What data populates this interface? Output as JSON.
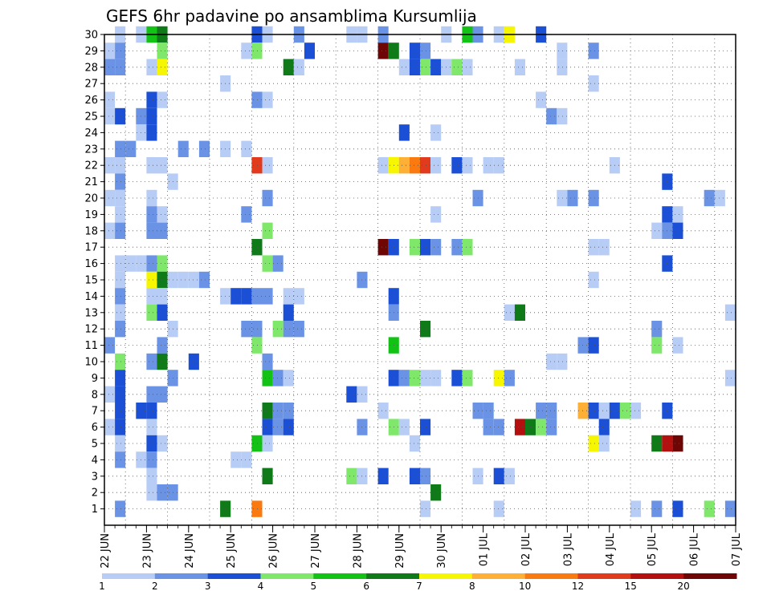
{
  "chart_data": {
    "type": "heatmap",
    "title": "GEFS 6hr padavine po ansamblima Kursumlija",
    "x_ticks": [
      "22 JUN",
      "23 JUN",
      "24 JUN",
      "25 JUN",
      "26 JUN",
      "27 JUN",
      "28 JUN",
      "29 JUN",
      "30 JUN",
      "01 JUL",
      "02 JUL",
      "03 JUL",
      "04 JUL",
      "05 JUL",
      "06 JUL",
      "07 JUL"
    ],
    "y_ticks": [
      1,
      2,
      3,
      4,
      5,
      6,
      7,
      8,
      9,
      10,
      11,
      12,
      13,
      14,
      15,
      16,
      17,
      18,
      19,
      20,
      21,
      22,
      23,
      24,
      25,
      26,
      27,
      28,
      29,
      30
    ],
    "ylim": [
      0,
      30
    ],
    "x_steps_per_day": 4,
    "grid": true,
    "colorbar": {
      "levels": [
        "1",
        "2",
        "3",
        "4",
        "5",
        "6",
        "7",
        "8",
        "10",
        "12",
        "15",
        "20"
      ],
      "colors": [
        "#b8cdf5",
        "#6a93e6",
        "#1a4fd6",
        "#7fe86a",
        "#12c214",
        "#0e7a18",
        "#f6f600",
        "#fdb035",
        "#fb7a10",
        "#e23a1c",
        "#b41010",
        "#6e0606"
      ]
    },
    "cells": [
      [
        1,
        30,
        0
      ],
      [
        3,
        30,
        0
      ],
      [
        4,
        30,
        4
      ],
      [
        5,
        30,
        5
      ],
      [
        14,
        30,
        2
      ],
      [
        15,
        30,
        0
      ],
      [
        18,
        30,
        1
      ],
      [
        23,
        30,
        0
      ],
      [
        24,
        30,
        0
      ],
      [
        26,
        30,
        1
      ],
      [
        32,
        30,
        0
      ],
      [
        34,
        30,
        4
      ],
      [
        35,
        30,
        1
      ],
      [
        37,
        30,
        0
      ],
      [
        38,
        30,
        6
      ],
      [
        41,
        30,
        2
      ],
      [
        0,
        29,
        0
      ],
      [
        1,
        29,
        1
      ],
      [
        5,
        29,
        3
      ],
      [
        13,
        29,
        0
      ],
      [
        14,
        29,
        3
      ],
      [
        19,
        29,
        2
      ],
      [
        26,
        29,
        11
      ],
      [
        27,
        29,
        5
      ],
      [
        29,
        29,
        2
      ],
      [
        30,
        29,
        1
      ],
      [
        43,
        29,
        0
      ],
      [
        46,
        29,
        1
      ],
      [
        0,
        28,
        1
      ],
      [
        1,
        28,
        1
      ],
      [
        4,
        28,
        0
      ],
      [
        5,
        28,
        6
      ],
      [
        17,
        28,
        5
      ],
      [
        18,
        28,
        0
      ],
      [
        28,
        28,
        0
      ],
      [
        29,
        28,
        2
      ],
      [
        30,
        28,
        3
      ],
      [
        31,
        28,
        2
      ],
      [
        32,
        28,
        0
      ],
      [
        33,
        28,
        3
      ],
      [
        34,
        28,
        0
      ],
      [
        39,
        28,
        0
      ],
      [
        43,
        28,
        0
      ],
      [
        11,
        27,
        0
      ],
      [
        46,
        27,
        0
      ],
      [
        0,
        26,
        0
      ],
      [
        4,
        26,
        2
      ],
      [
        5,
        26,
        0
      ],
      [
        14,
        26,
        1
      ],
      [
        15,
        26,
        0
      ],
      [
        41,
        26,
        0
      ],
      [
        0,
        25,
        0
      ],
      [
        1,
        25,
        2
      ],
      [
        3,
        25,
        1
      ],
      [
        4,
        25,
        2
      ],
      [
        42,
        25,
        1
      ],
      [
        43,
        25,
        0
      ],
      [
        3,
        24,
        0
      ],
      [
        4,
        24,
        2
      ],
      [
        28,
        24,
        2
      ],
      [
        31,
        24,
        0
      ],
      [
        1,
        23,
        1
      ],
      [
        2,
        23,
        1
      ],
      [
        7,
        23,
        1
      ],
      [
        9,
        23,
        1
      ],
      [
        11,
        23,
        0
      ],
      [
        13,
        23,
        0
      ],
      [
        0,
        22,
        0
      ],
      [
        1,
        22,
        0
      ],
      [
        4,
        22,
        0
      ],
      [
        5,
        22,
        0
      ],
      [
        14,
        22,
        9
      ],
      [
        15,
        22,
        0
      ],
      [
        26,
        22,
        0
      ],
      [
        27,
        22,
        6
      ],
      [
        28,
        22,
        7
      ],
      [
        29,
        22,
        8
      ],
      [
        30,
        22,
        9
      ],
      [
        31,
        22,
        0
      ],
      [
        33,
        22,
        2
      ],
      [
        34,
        22,
        0
      ],
      [
        36,
        22,
        0
      ],
      [
        37,
        22,
        0
      ],
      [
        48,
        22,
        0
      ],
      [
        1,
        21,
        1
      ],
      [
        6,
        21,
        0
      ],
      [
        53,
        21,
        2
      ],
      [
        0,
        20,
        0
      ],
      [
        1,
        20,
        0
      ],
      [
        4,
        20,
        0
      ],
      [
        15,
        20,
        1
      ],
      [
        35,
        20,
        1
      ],
      [
        43,
        20,
        0
      ],
      [
        44,
        20,
        1
      ],
      [
        46,
        20,
        1
      ],
      [
        57,
        20,
        1
      ],
      [
        58,
        20,
        0
      ],
      [
        1,
        19,
        0
      ],
      [
        4,
        19,
        1
      ],
      [
        5,
        19,
        0
      ],
      [
        13,
        19,
        1
      ],
      [
        31,
        19,
        0
      ],
      [
        53,
        19,
        2
      ],
      [
        54,
        19,
        0
      ],
      [
        0,
        18,
        0
      ],
      [
        1,
        18,
        1
      ],
      [
        4,
        18,
        1
      ],
      [
        5,
        18,
        1
      ],
      [
        15,
        18,
        3
      ],
      [
        52,
        18,
        0
      ],
      [
        53,
        18,
        1
      ],
      [
        54,
        18,
        2
      ],
      [
        14,
        17,
        5
      ],
      [
        26,
        17,
        11
      ],
      [
        27,
        17,
        2
      ],
      [
        29,
        17,
        3
      ],
      [
        30,
        17,
        2
      ],
      [
        31,
        17,
        1
      ],
      [
        33,
        17,
        1
      ],
      [
        34,
        17,
        3
      ],
      [
        46,
        17,
        0
      ],
      [
        47,
        17,
        0
      ],
      [
        1,
        16,
        0
      ],
      [
        2,
        16,
        0
      ],
      [
        3,
        16,
        0
      ],
      [
        4,
        16,
        1
      ],
      [
        5,
        16,
        3
      ],
      [
        15,
        16,
        3
      ],
      [
        16,
        16,
        1
      ],
      [
        53,
        16,
        2
      ],
      [
        1,
        15,
        0
      ],
      [
        4,
        15,
        6
      ],
      [
        5,
        15,
        5
      ],
      [
        6,
        15,
        0
      ],
      [
        7,
        15,
        0
      ],
      [
        8,
        15,
        0
      ],
      [
        9,
        15,
        1
      ],
      [
        24,
        15,
        1
      ],
      [
        46,
        15,
        0
      ],
      [
        1,
        14,
        1
      ],
      [
        4,
        14,
        0
      ],
      [
        5,
        14,
        0
      ],
      [
        11,
        14,
        0
      ],
      [
        12,
        14,
        2
      ],
      [
        13,
        14,
        2
      ],
      [
        14,
        14,
        1
      ],
      [
        15,
        14,
        1
      ],
      [
        17,
        14,
        0
      ],
      [
        18,
        14,
        0
      ],
      [
        27,
        14,
        2
      ],
      [
        1,
        13,
        0
      ],
      [
        4,
        13,
        3
      ],
      [
        5,
        13,
        2
      ],
      [
        17,
        13,
        2
      ],
      [
        27,
        13,
        1
      ],
      [
        38,
        13,
        0
      ],
      [
        39,
        13,
        5
      ],
      [
        59,
        13,
        0
      ],
      [
        1,
        12,
        1
      ],
      [
        6,
        12,
        0
      ],
      [
        13,
        12,
        1
      ],
      [
        14,
        12,
        1
      ],
      [
        16,
        12,
        3
      ],
      [
        17,
        12,
        1
      ],
      [
        18,
        12,
        1
      ],
      [
        30,
        12,
        5
      ],
      [
        52,
        12,
        1
      ],
      [
        0,
        11,
        1
      ],
      [
        5,
        11,
        1
      ],
      [
        14,
        11,
        3
      ],
      [
        27,
        11,
        4
      ],
      [
        45,
        11,
        1
      ],
      [
        46,
        11,
        2
      ],
      [
        52,
        11,
        3
      ],
      [
        54,
        11,
        0
      ],
      [
        1,
        10,
        3
      ],
      [
        4,
        10,
        1
      ],
      [
        5,
        10,
        5
      ],
      [
        8,
        10,
        2
      ],
      [
        15,
        10,
        1
      ],
      [
        42,
        10,
        0
      ],
      [
        43,
        10,
        0
      ],
      [
        1,
        9,
        2
      ],
      [
        6,
        9,
        1
      ],
      [
        15,
        9,
        4
      ],
      [
        16,
        9,
        1
      ],
      [
        17,
        9,
        0
      ],
      [
        27,
        9,
        2
      ],
      [
        28,
        9,
        1
      ],
      [
        29,
        9,
        3
      ],
      [
        30,
        9,
        0
      ],
      [
        31,
        9,
        0
      ],
      [
        33,
        9,
        2
      ],
      [
        34,
        9,
        3
      ],
      [
        37,
        9,
        6
      ],
      [
        38,
        9,
        1
      ],
      [
        59,
        9,
        0
      ],
      [
        0,
        8,
        0
      ],
      [
        1,
        8,
        2
      ],
      [
        4,
        8,
        1
      ],
      [
        5,
        8,
        1
      ],
      [
        23,
        8,
        2
      ],
      [
        24,
        8,
        0
      ],
      [
        1,
        7,
        2
      ],
      [
        3,
        7,
        2
      ],
      [
        4,
        7,
        2
      ],
      [
        15,
        7,
        5
      ],
      [
        16,
        7,
        1
      ],
      [
        17,
        7,
        1
      ],
      [
        26,
        7,
        0
      ],
      [
        35,
        7,
        1
      ],
      [
        36,
        7,
        1
      ],
      [
        41,
        7,
        1
      ],
      [
        42,
        7,
        1
      ],
      [
        45,
        7,
        7
      ],
      [
        46,
        7,
        2
      ],
      [
        47,
        7,
        0
      ],
      [
        48,
        7,
        2
      ],
      [
        49,
        7,
        3
      ],
      [
        50,
        7,
        0
      ],
      [
        53,
        7,
        2
      ],
      [
        0,
        6,
        0
      ],
      [
        1,
        6,
        2
      ],
      [
        4,
        6,
        0
      ],
      [
        15,
        6,
        2
      ],
      [
        16,
        6,
        1
      ],
      [
        17,
        6,
        2
      ],
      [
        24,
        6,
        1
      ],
      [
        27,
        6,
        3
      ],
      [
        28,
        6,
        0
      ],
      [
        30,
        6,
        2
      ],
      [
        36,
        6,
        1
      ],
      [
        37,
        6,
        1
      ],
      [
        39,
        6,
        10
      ],
      [
        40,
        6,
        5
      ],
      [
        41,
        6,
        3
      ],
      [
        42,
        6,
        1
      ],
      [
        47,
        6,
        2
      ],
      [
        1,
        5,
        0
      ],
      [
        4,
        5,
        2
      ],
      [
        5,
        5,
        0
      ],
      [
        14,
        5,
        4
      ],
      [
        15,
        5,
        0
      ],
      [
        29,
        5,
        0
      ],
      [
        46,
        5,
        6
      ],
      [
        47,
        5,
        0
      ],
      [
        52,
        5,
        5
      ],
      [
        53,
        5,
        10
      ],
      [
        54,
        5,
        11
      ],
      [
        1,
        4,
        1
      ],
      [
        3,
        4,
        0
      ],
      [
        4,
        4,
        1
      ],
      [
        12,
        4,
        0
      ],
      [
        13,
        4,
        0
      ],
      [
        4,
        3,
        0
      ],
      [
        15,
        3,
        5
      ],
      [
        23,
        3,
        3
      ],
      [
        24,
        3,
        0
      ],
      [
        26,
        3,
        2
      ],
      [
        29,
        3,
        2
      ],
      [
        30,
        3,
        1
      ],
      [
        35,
        3,
        0
      ],
      [
        37,
        3,
        2
      ],
      [
        38,
        3,
        0
      ],
      [
        4,
        2,
        0
      ],
      [
        5,
        2,
        1
      ],
      [
        6,
        2,
        1
      ],
      [
        31,
        2,
        5
      ],
      [
        1,
        1,
        1
      ],
      [
        11,
        1,
        5
      ],
      [
        14,
        1,
        8
      ],
      [
        30,
        1,
        0
      ],
      [
        37,
        1,
        0
      ],
      [
        50,
        1,
        0
      ],
      [
        52,
        1,
        1
      ],
      [
        54,
        1,
        2
      ],
      [
        57,
        1,
        3
      ],
      [
        59,
        1,
        1
      ]
    ]
  }
}
